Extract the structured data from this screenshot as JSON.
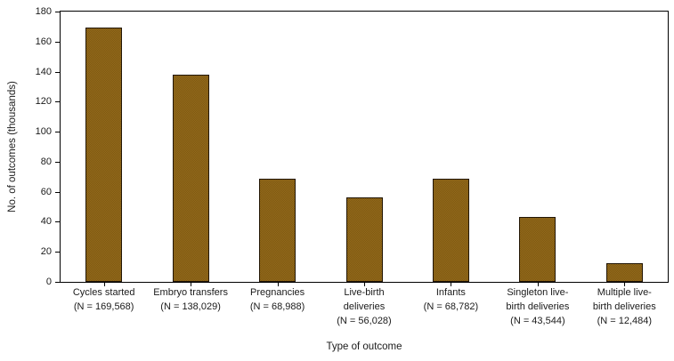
{
  "chart_data": {
    "type": "bar",
    "title": "",
    "xlabel": "Type of outcome",
    "ylabel": "No. of outcomes (thousands)",
    "ylim": [
      0,
      180
    ],
    "yticks": [
      0,
      20,
      40,
      60,
      80,
      100,
      120,
      140,
      160,
      180
    ],
    "grid": false,
    "legend": false,
    "bar_color": "#8a6418",
    "bar_border_color": "#221605",
    "categories": [
      {
        "label_lines": [
          "Cycles started",
          "(N = 169,568)"
        ],
        "n": 169568
      },
      {
        "label_lines": [
          "Embryo transfers",
          "(N = 138,029)"
        ],
        "n": 138029
      },
      {
        "label_lines": [
          "Pregnancies",
          "(N = 68,988)"
        ],
        "n": 68988
      },
      {
        "label_lines": [
          "Live-birth",
          "deliveries",
          "(N = 56,028)"
        ],
        "n": 56028
      },
      {
        "label_lines": [
          "Infants",
          "(N = 68,782)"
        ],
        "n": 68782
      },
      {
        "label_lines": [
          "Singleton live-",
          "birth deliveries",
          "(N = 43,544)"
        ],
        "n": 43544
      },
      {
        "label_lines": [
          "Multiple live-",
          "birth deliveries",
          "(N = 12,484)"
        ],
        "n": 12484
      }
    ],
    "values_thousands": [
      169.568,
      138.029,
      68.988,
      56.028,
      68.782,
      43.544,
      12.484
    ]
  }
}
